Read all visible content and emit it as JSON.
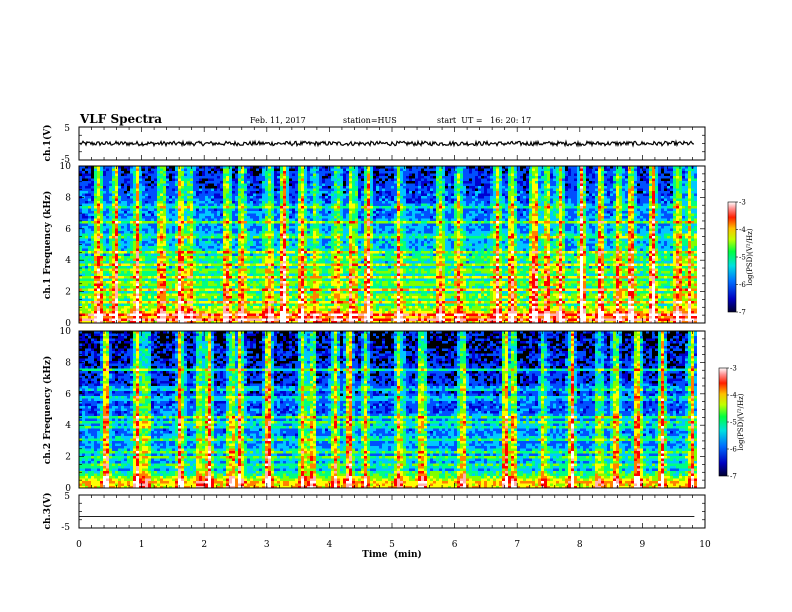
{
  "header": {
    "title": "VLF Spectra",
    "date": "Feb. 11, 2017",
    "station": "station=HUS",
    "start": "start  UT =   16: 20: 17"
  },
  "chart_data": [
    {
      "type": "line",
      "panel": "ch1-waveform",
      "ylabel": "ch.1(V)",
      "ylim": [
        -5,
        5
      ],
      "yticks": [
        "5",
        "-5"
      ],
      "xlim": [
        0,
        10
      ],
      "trace_level": 0,
      "trace_amplitude": 0.3
    },
    {
      "type": "heatmap",
      "panel": "ch1-spectrogram",
      "ylabel": "ch.1 Frequency (kHz)",
      "ylim": [
        0,
        10
      ],
      "yticks": [
        "0",
        "2",
        "4",
        "6",
        "8",
        "10"
      ],
      "xlim": [
        0,
        10
      ],
      "data_end_min": 9.83,
      "colorbar": {
        "label": "log(PSD)(V²/Hz)",
        "range": [
          -7,
          -3
        ],
        "ticks": [
          "-3",
          "-4",
          "-5",
          "-6",
          "-7"
        ]
      },
      "bands_khz": [
        0.3,
        0.6,
        1.0,
        1.4,
        1.8,
        2.2,
        2.6,
        3.0,
        3.4,
        3.8,
        4.2,
        4.6,
        5.6,
        6.5,
        7.5
      ],
      "bursts_min": [
        0.3,
        0.55,
        0.9,
        1.3,
        1.6,
        1.75,
        2.35,
        2.6,
        3.0,
        3.25,
        3.55,
        3.75,
        4.1,
        4.35,
        4.6,
        5.1,
        5.75,
        6.05,
        6.65,
        6.9,
        7.25,
        7.45,
        7.65,
        8.0,
        8.3,
        8.6,
        8.8,
        9.15,
        9.55,
        9.75
      ]
    },
    {
      "type": "heatmap",
      "panel": "ch2-spectrogram",
      "ylabel": "ch.2 Frequency (kHz)",
      "ylim": [
        0,
        10
      ],
      "yticks": [
        "0",
        "2",
        "4",
        "6",
        "8",
        "10"
      ],
      "xlim": [
        0,
        10
      ],
      "data_end_min": 9.83,
      "colorbar": {
        "label": "log(PSD)(V²/Hz)",
        "range": [
          -7,
          -3
        ],
        "ticks": [
          "-3",
          "-4",
          "-5",
          "-6",
          "-7"
        ]
      },
      "bands_khz": [
        0.2,
        0.5,
        1.0,
        1.5,
        2.0,
        2.4,
        3.2,
        4.0,
        4.3,
        4.6,
        5.8,
        6.4,
        7.6
      ],
      "bursts_min": [
        0.4,
        0.9,
        1.05,
        1.6,
        1.9,
        2.05,
        2.4,
        2.55,
        3.0,
        3.55,
        3.7,
        4.05,
        4.3,
        4.55,
        5.1,
        5.45,
        6.1,
        6.8,
        6.9,
        7.4,
        7.85,
        8.3,
        8.55,
        8.9,
        9.3,
        9.75
      ]
    },
    {
      "type": "line",
      "panel": "ch3-waveform",
      "ylabel": "ch.3(V)",
      "ylim": [
        -5,
        5
      ],
      "yticks": [
        "5",
        "-5"
      ],
      "xlim": [
        0,
        10
      ],
      "trace_level": -1.5,
      "xlabel": "Time  (min)",
      "xticks": [
        "0",
        "1",
        "2",
        "3",
        "4",
        "5",
        "6",
        "7",
        "8",
        "9",
        "10"
      ]
    }
  ],
  "colors": {
    "background": "#000000",
    "axis": "#000000",
    "trace": "#000000",
    "colormap": [
      "#000000",
      "#0000d0",
      "#0050ff",
      "#00c8ff",
      "#00ff80",
      "#80ff00",
      "#ffff00",
      "#ff8000",
      "#ff0000",
      "#ffb0b0",
      "#ffffff"
    ]
  }
}
